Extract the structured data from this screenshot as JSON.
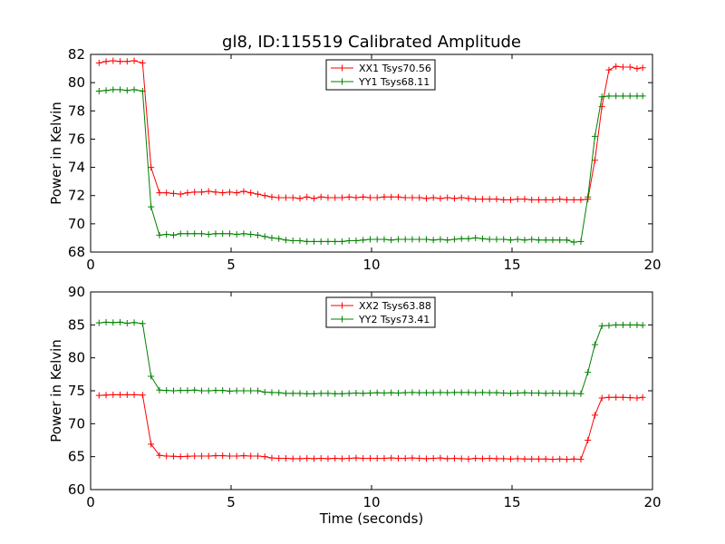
{
  "chart_data": [
    {
      "type": "line",
      "title": "gl8, ID:115519 Calibrated Amplitude",
      "xlabel": "",
      "ylabel": "Power in Kelvin",
      "xlim": [
        0,
        20
      ],
      "ylim": [
        68,
        82
      ],
      "xticks": [
        0,
        5,
        10,
        15,
        20
      ],
      "yticks": [
        68,
        70,
        72,
        74,
        76,
        78,
        80,
        82
      ],
      "grid": false,
      "legend_position": "top-center",
      "x": [
        0.3,
        0.55,
        0.8,
        1.05,
        1.3,
        1.55,
        1.85,
        2.15,
        2.45,
        2.7,
        2.95,
        3.2,
        3.45,
        3.7,
        3.95,
        4.2,
        4.45,
        4.7,
        4.95,
        5.2,
        5.45,
        5.7,
        5.95,
        6.2,
        6.45,
        6.7,
        6.95,
        7.2,
        7.45,
        7.7,
        7.95,
        8.2,
        8.45,
        8.7,
        8.95,
        9.2,
        9.45,
        9.7,
        9.95,
        10.2,
        10.45,
        10.7,
        10.95,
        11.2,
        11.45,
        11.7,
        11.95,
        12.2,
        12.45,
        12.7,
        12.95,
        13.2,
        13.45,
        13.7,
        13.95,
        14.2,
        14.45,
        14.7,
        14.95,
        15.2,
        15.45,
        15.7,
        15.95,
        16.2,
        16.45,
        16.7,
        16.95,
        17.2,
        17.45,
        17.7,
        17.95,
        18.2,
        18.45,
        18.7,
        18.95,
        19.2,
        19.45,
        19.65
      ],
      "series": [
        {
          "name": "XX1 Tsys70.56",
          "color": "#ff0000",
          "values": [
            81.4,
            81.5,
            81.55,
            81.5,
            81.5,
            81.55,
            81.4,
            74.0,
            72.2,
            72.2,
            72.15,
            72.1,
            72.2,
            72.25,
            72.25,
            72.3,
            72.25,
            72.2,
            72.25,
            72.2,
            72.3,
            72.2,
            72.1,
            72.0,
            71.9,
            71.85,
            71.85,
            71.85,
            71.8,
            71.9,
            71.8,
            71.9,
            71.85,
            71.85,
            71.85,
            71.9,
            71.85,
            71.9,
            71.85,
            71.85,
            71.9,
            71.9,
            71.9,
            71.85,
            71.85,
            71.85,
            71.8,
            71.85,
            71.8,
            71.85,
            71.8,
            71.85,
            71.8,
            71.75,
            71.75,
            71.75,
            71.75,
            71.7,
            71.7,
            71.75,
            71.75,
            71.7,
            71.7,
            71.7,
            71.7,
            71.75,
            71.7,
            71.7,
            71.7,
            71.75,
            74.5,
            78.3,
            80.9,
            81.15,
            81.1,
            81.1,
            81.0,
            81.05
          ]
        },
        {
          "name": "YY1 Tsys68.11",
          "color": "#008000",
          "values": [
            79.4,
            79.45,
            79.5,
            79.5,
            79.45,
            79.5,
            79.4,
            71.2,
            69.2,
            69.25,
            69.2,
            69.3,
            69.3,
            69.3,
            69.3,
            69.25,
            69.3,
            69.3,
            69.3,
            69.25,
            69.3,
            69.25,
            69.2,
            69.1,
            69.0,
            68.95,
            68.85,
            68.8,
            68.8,
            68.75,
            68.75,
            68.75,
            68.75,
            68.75,
            68.75,
            68.8,
            68.8,
            68.85,
            68.9,
            68.9,
            68.9,
            68.85,
            68.9,
            68.9,
            68.9,
            68.9,
            68.9,
            68.85,
            68.9,
            68.85,
            68.9,
            68.95,
            68.95,
            69.0,
            68.95,
            68.9,
            68.9,
            68.9,
            68.85,
            68.9,
            68.85,
            68.9,
            68.85,
            68.85,
            68.85,
            68.85,
            68.85,
            68.7,
            68.75,
            71.9,
            76.2,
            79.0,
            79.05,
            79.05,
            79.05,
            79.05,
            79.05,
            79.05
          ]
        }
      ]
    },
    {
      "type": "line",
      "title": "",
      "xlabel": "Time (seconds)",
      "ylabel": "Power in Kelvin",
      "xlim": [
        0,
        20
      ],
      "ylim": [
        60,
        90
      ],
      "xticks": [
        0,
        5,
        10,
        15,
        20
      ],
      "yticks": [
        60,
        65,
        70,
        75,
        80,
        85,
        90
      ],
      "grid": false,
      "legend_position": "top-center",
      "x": [
        0.3,
        0.55,
        0.8,
        1.05,
        1.3,
        1.55,
        1.85,
        2.15,
        2.45,
        2.7,
        2.95,
        3.2,
        3.45,
        3.7,
        3.95,
        4.2,
        4.45,
        4.7,
        4.95,
        5.2,
        5.45,
        5.7,
        5.95,
        6.2,
        6.45,
        6.7,
        6.95,
        7.2,
        7.45,
        7.7,
        7.95,
        8.2,
        8.45,
        8.7,
        8.95,
        9.2,
        9.45,
        9.7,
        9.95,
        10.2,
        10.45,
        10.7,
        10.95,
        11.2,
        11.45,
        11.7,
        11.95,
        12.2,
        12.45,
        12.7,
        12.95,
        13.2,
        13.45,
        13.7,
        13.95,
        14.2,
        14.45,
        14.7,
        14.95,
        15.2,
        15.45,
        15.7,
        15.95,
        16.2,
        16.45,
        16.7,
        16.95,
        17.2,
        17.45,
        17.7,
        17.95,
        18.2,
        18.45,
        18.7,
        18.95,
        19.2,
        19.45,
        19.65
      ],
      "series": [
        {
          "name": "XX2 Tsys63.88",
          "color": "#ff0000",
          "values": [
            74.3,
            74.35,
            74.4,
            74.4,
            74.4,
            74.4,
            74.35,
            66.9,
            65.2,
            65.1,
            65.05,
            65.0,
            65.05,
            65.1,
            65.1,
            65.1,
            65.15,
            65.15,
            65.1,
            65.1,
            65.15,
            65.1,
            65.1,
            65.0,
            64.8,
            64.75,
            64.75,
            64.7,
            64.7,
            64.75,
            64.7,
            64.75,
            64.7,
            64.75,
            64.7,
            64.75,
            64.8,
            64.75,
            64.75,
            64.75,
            64.75,
            64.8,
            64.75,
            64.75,
            64.8,
            64.75,
            64.7,
            64.75,
            64.8,
            64.7,
            64.75,
            64.7,
            64.65,
            64.75,
            64.7,
            64.75,
            64.7,
            64.7,
            64.65,
            64.7,
            64.65,
            64.65,
            64.65,
            64.65,
            64.6,
            64.65,
            64.6,
            64.65,
            64.6,
            67.5,
            71.3,
            73.9,
            74.0,
            74.0,
            74.0,
            73.95,
            73.9,
            74.0
          ]
        },
        {
          "name": "YY2 Tsys73.41",
          "color": "#008000",
          "values": [
            85.3,
            85.4,
            85.35,
            85.4,
            85.25,
            85.35,
            85.2,
            77.2,
            75.1,
            75.05,
            75.0,
            75.05,
            75.05,
            75.1,
            75.0,
            75.0,
            75.05,
            75.05,
            74.95,
            75.0,
            75.0,
            75.0,
            75.0,
            74.8,
            74.75,
            74.7,
            74.6,
            74.6,
            74.6,
            74.55,
            74.55,
            74.6,
            74.6,
            74.55,
            74.55,
            74.6,
            74.65,
            74.6,
            74.65,
            74.7,
            74.65,
            74.7,
            74.65,
            74.7,
            74.75,
            74.7,
            74.7,
            74.7,
            74.75,
            74.7,
            74.75,
            74.75,
            74.75,
            74.7,
            74.75,
            74.7,
            74.7,
            74.65,
            74.6,
            74.65,
            74.7,
            74.65,
            74.65,
            74.6,
            74.65,
            74.6,
            74.6,
            74.6,
            74.55,
            77.8,
            82.0,
            84.85,
            84.9,
            85.0,
            85.0,
            85.0,
            85.0,
            84.95
          ]
        }
      ]
    }
  ]
}
